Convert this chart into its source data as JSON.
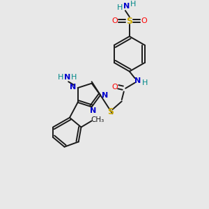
{
  "bg_color": "#e8e8e8",
  "bond_color": "#1a1a1a",
  "N_color": "#0000cc",
  "O_color": "#ff0000",
  "S_color": "#ccaa00",
  "H_color": "#008888",
  "figsize": [
    3.0,
    3.0
  ],
  "dpi": 100,
  "xlim": [
    0,
    10
  ],
  "ylim": [
    0,
    10
  ]
}
